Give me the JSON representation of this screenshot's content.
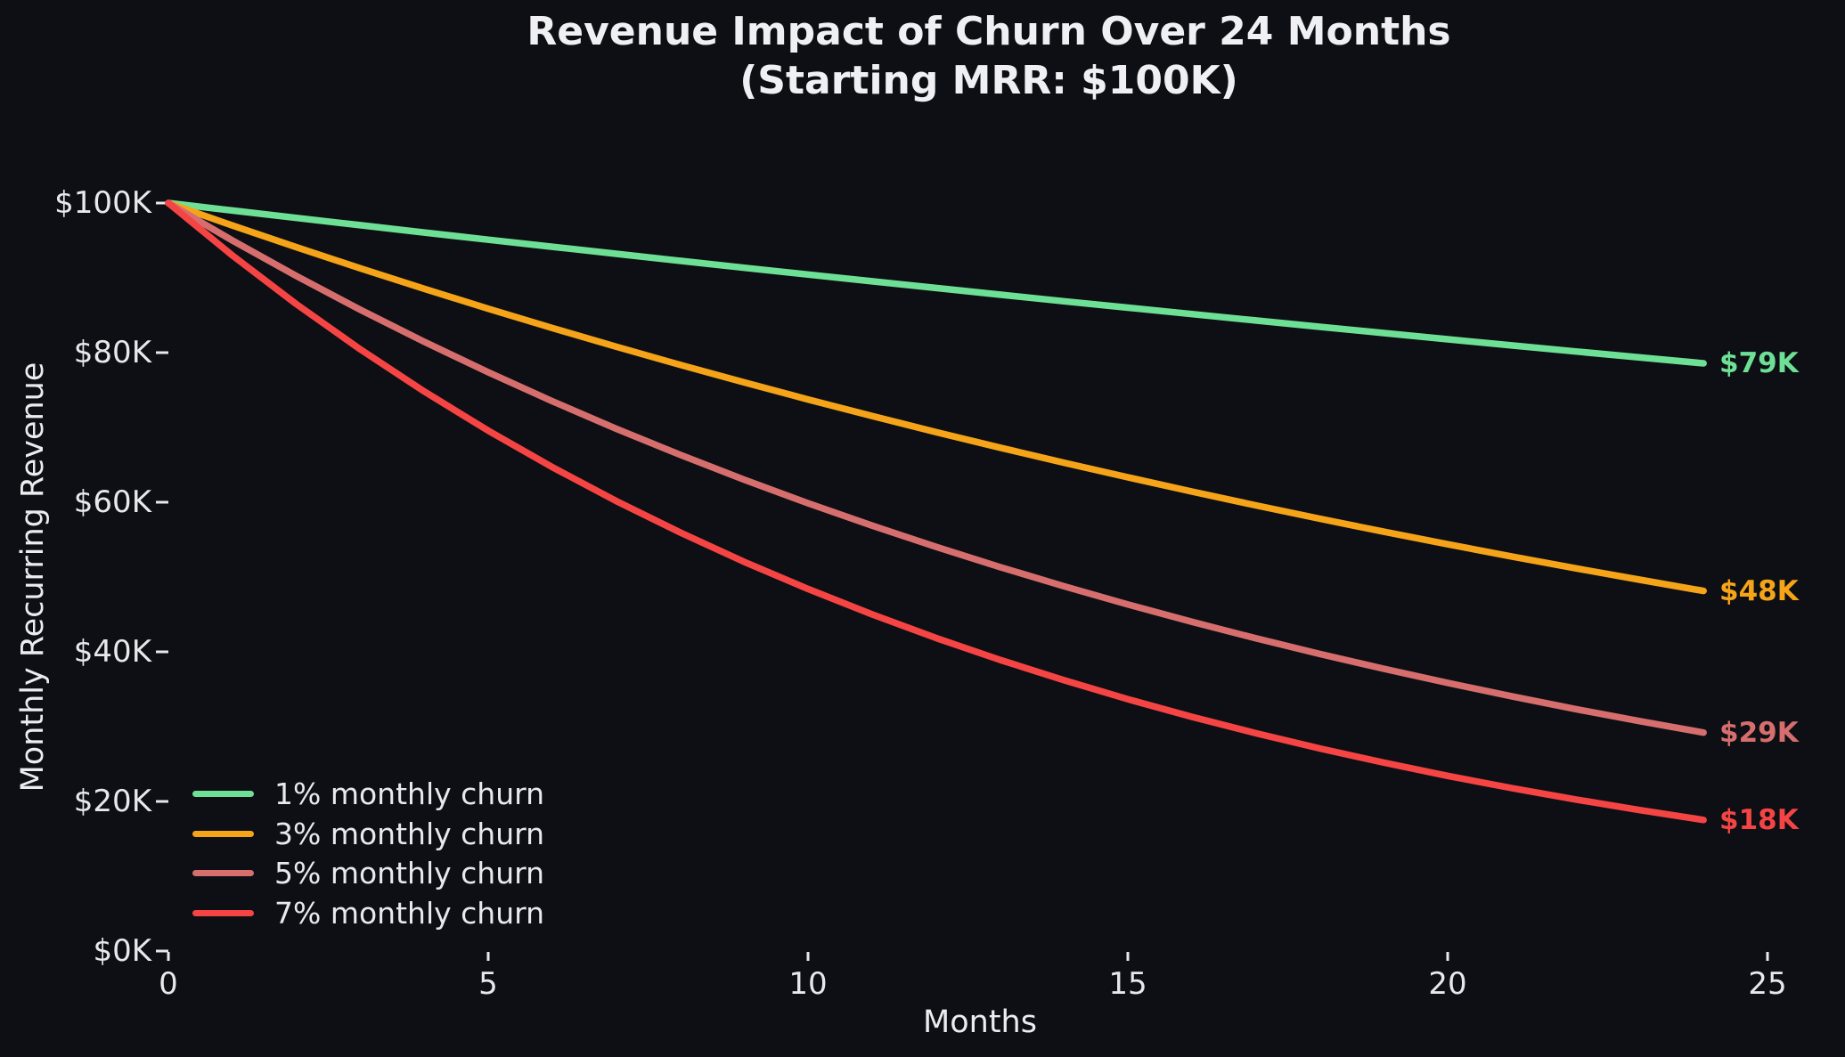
{
  "chart_data": {
    "type": "line",
    "title_line1": "Revenue Impact of Churn Over 24 Months",
    "title_line2": "(Starting MRR: $100K)",
    "xlabel": "Months",
    "ylabel": "Monthly Recurring Revenue",
    "background_color": "#0d0f14",
    "text_color": "#ececf0",
    "tick_color": "#e8e8ec",
    "grid": false,
    "legend_position": "lower left",
    "xlim": [
      0,
      25.3
    ],
    "ylim": [
      0,
      105
    ],
    "x": [
      0,
      1,
      2,
      3,
      4,
      5,
      6,
      7,
      8,
      9,
      10,
      11,
      12,
      13,
      14,
      15,
      16,
      17,
      18,
      19,
      20,
      21,
      22,
      23,
      24
    ],
    "xticks": [
      {
        "v": 0,
        "label": "0"
      },
      {
        "v": 5,
        "label": "5"
      },
      {
        "v": 10,
        "label": "10"
      },
      {
        "v": 15,
        "label": "15"
      },
      {
        "v": 20,
        "label": "20"
      },
      {
        "v": 25,
        "label": "25"
      }
    ],
    "yticks": [
      {
        "v": 0,
        "label": "$0K"
      },
      {
        "v": 20,
        "label": "$20K"
      },
      {
        "v": 40,
        "label": "$40K"
      },
      {
        "v": 60,
        "label": "$60K"
      },
      {
        "v": 80,
        "label": "$80K"
      },
      {
        "v": 100,
        "label": "$100K"
      }
    ],
    "series": [
      {
        "name": "1% monthly churn",
        "churn_rate": "1%",
        "color": "#6ee096",
        "end_label": "$79K",
        "values": [
          100,
          99,
          98.01,
          97.03,
          96.06,
          95.1,
          94.15,
          93.21,
          92.27,
          91.35,
          90.44,
          89.53,
          88.64,
          87.75,
          86.87,
          86.01,
          85.15,
          84.3,
          83.45,
          82.62,
          81.79,
          80.97,
          80.16,
          79.36,
          78.57
        ]
      },
      {
        "name": "3% monthly churn",
        "churn_rate": "3%",
        "color": "#f5a419",
        "end_label": "$48K",
        "values": [
          100,
          97,
          94.09,
          91.27,
          88.53,
          85.87,
          83.3,
          80.8,
          78.37,
          76.02,
          73.74,
          71.53,
          69.38,
          67.3,
          65.28,
          63.33,
          61.43,
          59.58,
          57.8,
          56.06,
          54.38,
          52.75,
          51.17,
          49.64,
          48.14
        ]
      },
      {
        "name": "5% monthly churn",
        "churn_rate": "5%",
        "color": "#d66e6e",
        "end_label": "$29K",
        "values": [
          100,
          95,
          90.25,
          85.74,
          81.45,
          77.38,
          73.51,
          69.83,
          66.34,
          63.02,
          59.87,
          56.88,
          54.04,
          51.33,
          48.77,
          46.33,
          44.01,
          41.81,
          39.72,
          37.74,
          35.85,
          34.06,
          32.35,
          30.74,
          29.2
        ]
      },
      {
        "name": "7% monthly churn",
        "churn_rate": "7%",
        "color": "#f54444",
        "end_label": "$18K",
        "values": [
          100,
          93,
          86.49,
          80.44,
          74.81,
          69.57,
          64.7,
          60.17,
          55.96,
          52.04,
          48.4,
          45.01,
          41.86,
          38.93,
          36.21,
          33.67,
          31.31,
          29.12,
          27.08,
          25.19,
          23.42,
          21.78,
          20.26,
          18.84,
          17.52
        ]
      }
    ]
  }
}
